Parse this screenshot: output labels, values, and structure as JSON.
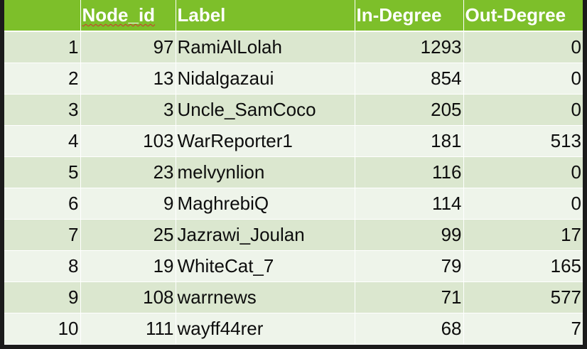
{
  "table": {
    "headers": {
      "index": "",
      "node_id": "Node_id",
      "label": "Label",
      "in_degree": "In-Degree",
      "out_degree": "Out-Degree"
    },
    "rows": [
      {
        "index": "1",
        "node_id": "97",
        "label": "RamiAlLolah",
        "in_degree": "1293",
        "out_degree": "0"
      },
      {
        "index": "2",
        "node_id": "13",
        "label": "Nidalgazaui",
        "in_degree": "854",
        "out_degree": "0"
      },
      {
        "index": "3",
        "node_id": "3",
        "label": "Uncle_SamCoco",
        "in_degree": "205",
        "out_degree": "0"
      },
      {
        "index": "4",
        "node_id": "103",
        "label": "WarReporter1",
        "in_degree": "181",
        "out_degree": "513"
      },
      {
        "index": "5",
        "node_id": "23",
        "label": "melvynlion",
        "in_degree": "116",
        "out_degree": "0"
      },
      {
        "index": "6",
        "node_id": "9",
        "label": "MaghrebiQ",
        "in_degree": "114",
        "out_degree": "0"
      },
      {
        "index": "7",
        "node_id": "25",
        "label": "Jazrawi_Joulan",
        "in_degree": "99",
        "out_degree": "17"
      },
      {
        "index": "8",
        "node_id": "19",
        "label": "WhiteCat_7",
        "in_degree": "79",
        "out_degree": "165"
      },
      {
        "index": "9",
        "node_id": "108",
        "label": "warrnews",
        "in_degree": "71",
        "out_degree": "577"
      },
      {
        "index": "10",
        "node_id": "111",
        "label": "wayff44rer",
        "in_degree": "68",
        "out_degree": "7"
      }
    ]
  },
  "colors": {
    "header_bg": "#7dbf2a",
    "row_odd_bg": "#dbe7cf",
    "row_even_bg": "#eef4ea",
    "frame_bg": "#1b1b1b"
  }
}
